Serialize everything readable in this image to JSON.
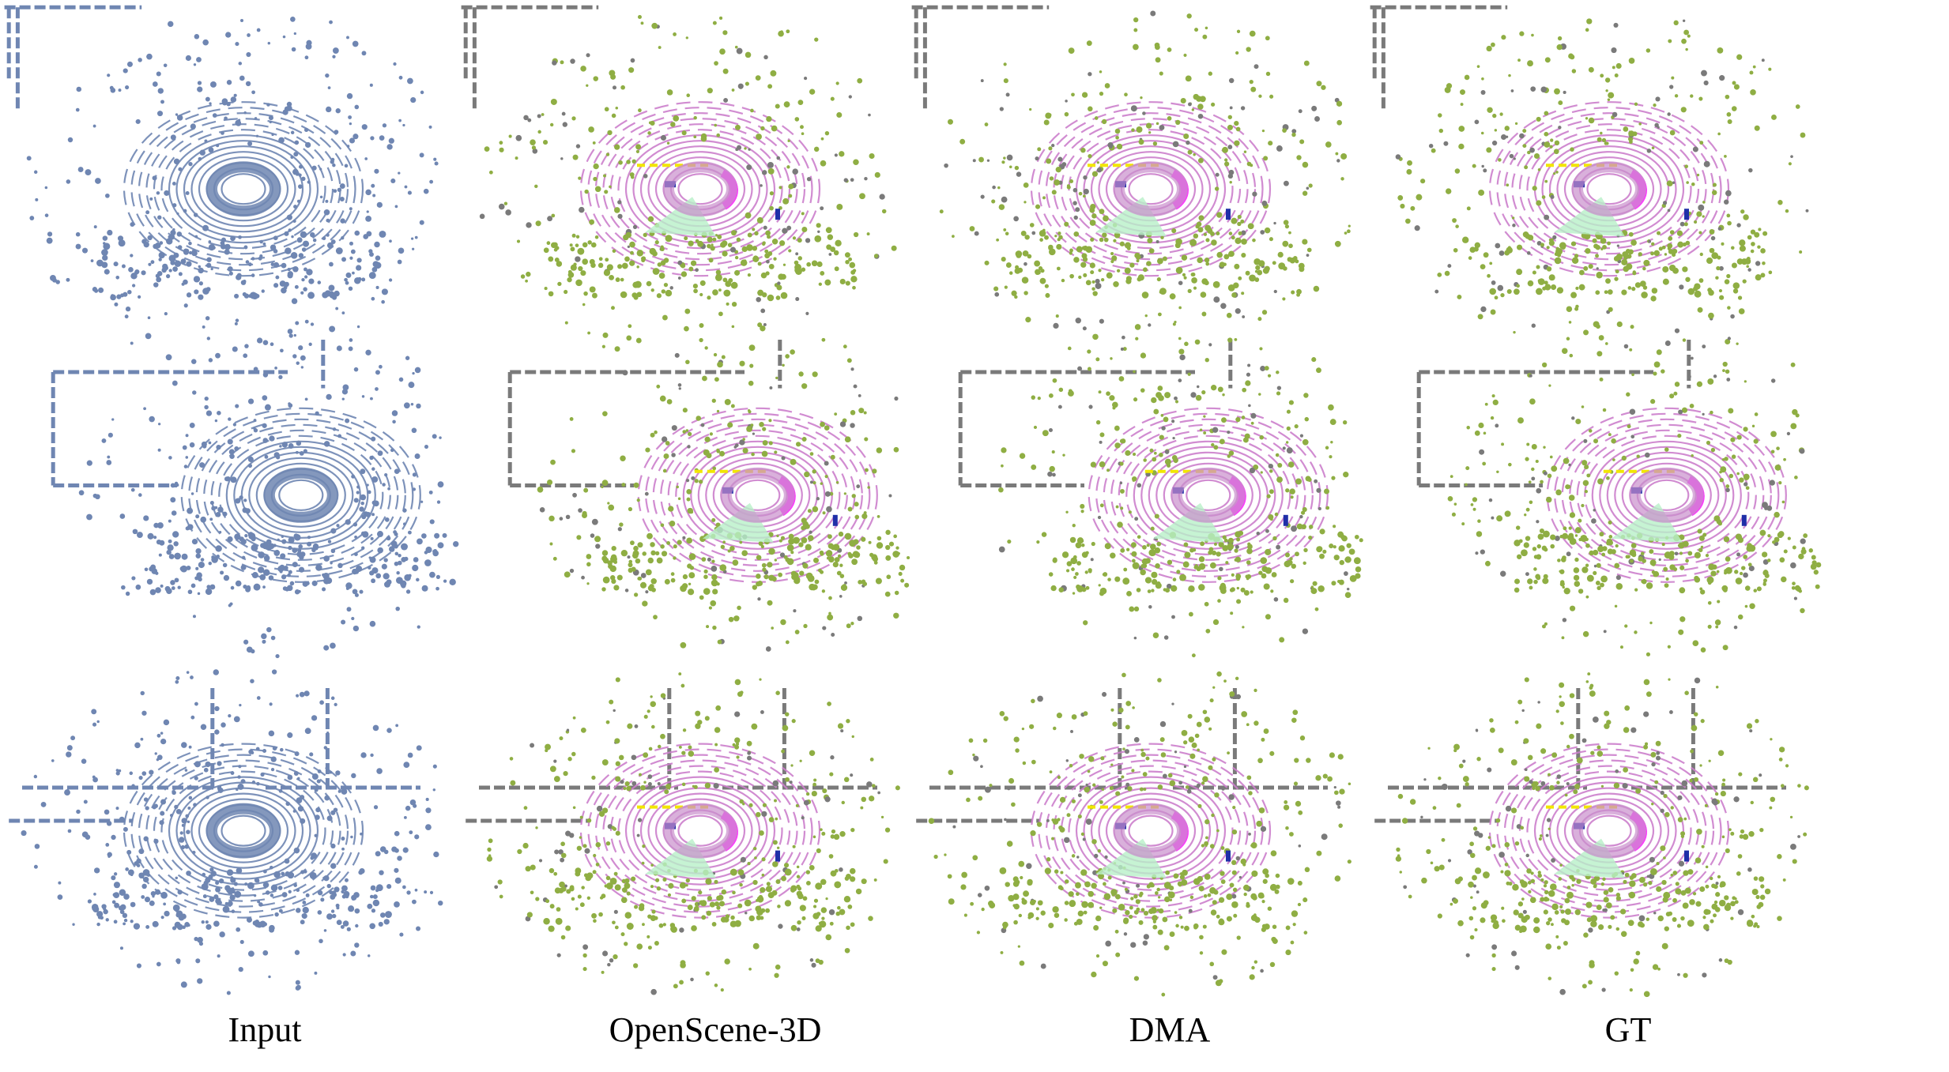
{
  "columns": [
    {
      "id": "input",
      "label": "Input"
    },
    {
      "id": "openscene",
      "label": "OpenScene-3D"
    },
    {
      "id": "dma",
      "label": "DMA"
    },
    {
      "id": "gt",
      "label": "GT"
    }
  ],
  "rows": 3,
  "colors": {
    "input_points": "#6f86b2",
    "road": "#cc7fcc",
    "vegetation": "#8fae43",
    "structure": "#7a7a7a",
    "vehicle": "#1f2fa8",
    "sidewalk": "#ff33ff",
    "terrain": "#b8f0c8",
    "pole": "#f2e600",
    "ego_center": "#c98fcc"
  }
}
